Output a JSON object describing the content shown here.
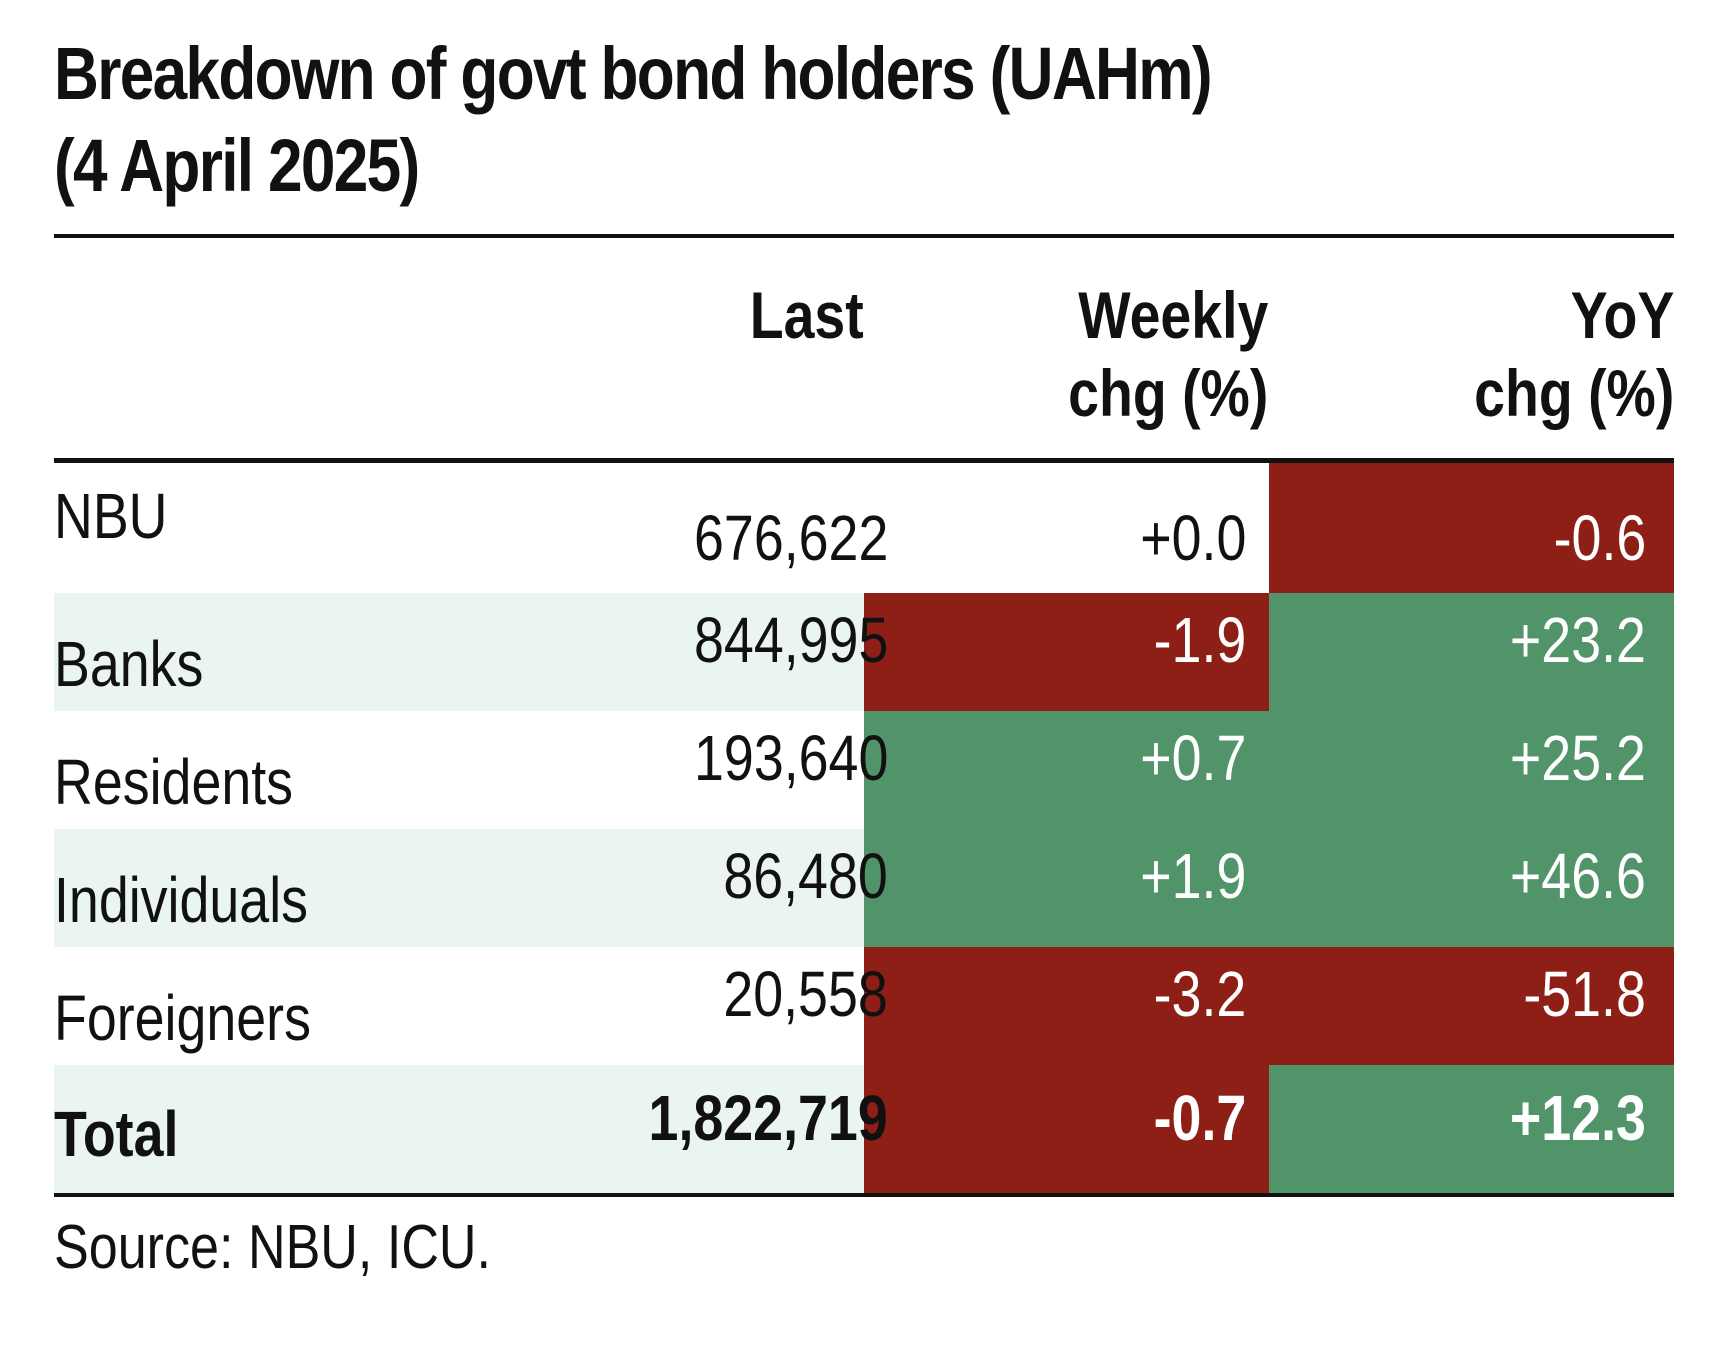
{
  "title_line1": "Breakdown of govt bond holders (UAHm)",
  "title_line2": "(4 April 2025)",
  "colors": {
    "negative_fill": "#8e1f17",
    "positive_fill": "#52946a",
    "stripe": "#eaf4f3",
    "text": "#111111"
  },
  "source": "Source: NBU, ICU.",
  "chart_data": {
    "type": "table",
    "title": "Breakdown of govt bond holders (UAHm) (4 April 2025)",
    "columns": [
      {
        "key": "holder",
        "label": ""
      },
      {
        "key": "last",
        "label_lines": [
          "Last"
        ]
      },
      {
        "key": "weekly",
        "label_lines": [
          "Weekly",
          "chg (%)"
        ]
      },
      {
        "key": "yoy",
        "label_lines": [
          "YoY",
          "chg (%)"
        ]
      }
    ],
    "rows": [
      {
        "holder": "NBU",
        "last": "676,622",
        "weekly": "+0.0",
        "yoy": "-0.6",
        "weekly_value": 0.0,
        "yoy_value": -0.6
      },
      {
        "holder": "Banks",
        "last": "844,995",
        "weekly": "-1.9",
        "yoy": "+23.2",
        "weekly_value": -1.9,
        "yoy_value": 23.2
      },
      {
        "holder": "Residents",
        "last": "193,640",
        "weekly": "+0.7",
        "yoy": "+25.2",
        "weekly_value": 0.7,
        "yoy_value": 25.2
      },
      {
        "holder": "Individuals",
        "last": "86,480",
        "weekly": "+1.9",
        "yoy": "+46.6",
        "weekly_value": 1.9,
        "yoy_value": 46.6
      },
      {
        "holder": "Foreigners",
        "last": "20,558",
        "weekly": "-3.2",
        "yoy": "-51.8",
        "weekly_value": -3.2,
        "yoy_value": -51.8
      },
      {
        "holder": "Total",
        "last": "1,822,719",
        "weekly": "-0.7",
        "yoy": "+12.3",
        "weekly_value": -0.7,
        "yoy_value": 12.3
      }
    ]
  }
}
